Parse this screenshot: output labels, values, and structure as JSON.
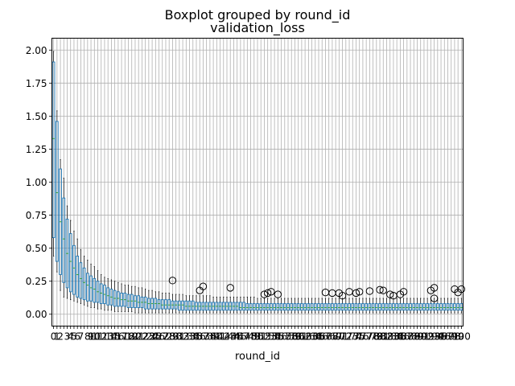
{
  "chart_data": {
    "type": "boxplot",
    "suptitle": "Boxplot grouped by round_id",
    "title": "validation_loss",
    "xlabel": "round_id",
    "ylabel": "",
    "ylim": [
      -0.09,
      2.09
    ],
    "yticks": [
      "0.00",
      "0.25",
      "0.50",
      "0.75",
      "1.00",
      "1.25",
      "1.50",
      "1.75",
      "2.00"
    ],
    "ytick_values": [
      0,
      0.25,
      0.5,
      0.75,
      1.0,
      1.25,
      1.5,
      1.75,
      2.0
    ],
    "grid": true,
    "colors": {
      "box": "#1f77b4",
      "median": "#2ca02c",
      "whisker": "#000000",
      "outlier": "#000000"
    },
    "categories_first": 0,
    "categories_last": 100,
    "x_tick_labels_note_visible_text": "0123456789101112...100",
    "x_ticks": [
      0,
      1,
      2,
      3,
      4,
      5,
      6,
      7,
      8,
      9,
      10,
      11,
      12,
      13,
      14,
      15,
      16,
      17,
      18,
      19,
      20,
      21,
      22,
      23,
      24,
      25,
      26,
      27,
      28,
      29,
      30,
      31,
      32,
      33,
      34,
      35,
      36,
      37,
      38,
      39,
      40,
      41,
      42,
      43,
      44,
      45,
      46,
      47,
      48,
      49,
      50,
      51,
      52,
      53,
      54,
      55,
      56,
      57,
      58,
      59,
      60,
      61,
      62,
      63,
      64,
      65,
      66,
      67,
      68,
      69,
      70,
      71,
      72,
      73,
      74,
      75,
      76,
      77,
      78,
      79,
      80,
      81,
      82,
      83,
      84,
      85,
      86,
      87,
      88,
      89,
      90,
      91,
      92,
      93,
      94,
      95,
      96,
      97,
      98,
      99,
      100
    ],
    "boxes": [
      {
        "x": 0,
        "q1": 0.58,
        "median": 1.33,
        "q3": 1.91,
        "low": 0.44,
        "high": 1.99
      },
      {
        "x": 1,
        "q1": 0.4,
        "median": 0.92,
        "q3": 1.46,
        "low": 0.32,
        "high": 1.54
      },
      {
        "x": 2,
        "q1": 0.3,
        "median": 0.7,
        "q3": 1.1,
        "low": 0.18,
        "high": 1.17
      },
      {
        "x": 3,
        "q1": 0.24,
        "median": 0.57,
        "q3": 0.88,
        "low": 0.13,
        "high": 1.03
      },
      {
        "x": 4,
        "q1": 0.2,
        "median": 0.46,
        "q3": 0.72,
        "low": 0.12,
        "high": 0.82
      },
      {
        "x": 5,
        "q1": 0.17,
        "median": 0.4,
        "q3": 0.61,
        "low": 0.11,
        "high": 0.71
      },
      {
        "x": 6,
        "q1": 0.15,
        "median": 0.35,
        "q3": 0.52,
        "low": 0.1,
        "high": 0.63
      },
      {
        "x": 7,
        "q1": 0.13,
        "median": 0.3,
        "q3": 0.44,
        "low": 0.09,
        "high": 0.57
      },
      {
        "x": 8,
        "q1": 0.12,
        "median": 0.27,
        "q3": 0.39,
        "low": 0.08,
        "high": 0.49
      },
      {
        "x": 9,
        "q1": 0.11,
        "median": 0.24,
        "q3": 0.35,
        "low": 0.07,
        "high": 0.44
      },
      {
        "x": 10,
        "q1": 0.1,
        "median": 0.22,
        "q3": 0.31,
        "low": 0.06,
        "high": 0.41
      },
      {
        "x": 11,
        "q1": 0.1,
        "median": 0.2,
        "q3": 0.29,
        "low": 0.05,
        "high": 0.38
      },
      {
        "x": 12,
        "q1": 0.09,
        "median": 0.19,
        "q3": 0.27,
        "low": 0.05,
        "high": 0.36
      },
      {
        "x": 13,
        "q1": 0.09,
        "median": 0.17,
        "q3": 0.25,
        "low": 0.04,
        "high": 0.33
      },
      {
        "x": 14,
        "q1": 0.08,
        "median": 0.16,
        "q3": 0.23,
        "low": 0.04,
        "high": 0.3
      },
      {
        "x": 15,
        "q1": 0.08,
        "median": 0.15,
        "q3": 0.22,
        "low": 0.03,
        "high": 0.28
      },
      {
        "x": 16,
        "q1": 0.07,
        "median": 0.14,
        "q3": 0.2,
        "low": 0.03,
        "high": 0.27
      },
      {
        "x": 17,
        "q1": 0.07,
        "median": 0.13,
        "q3": 0.19,
        "low": 0.03,
        "high": 0.26
      },
      {
        "x": 18,
        "q1": 0.06,
        "median": 0.12,
        "q3": 0.18,
        "low": 0.02,
        "high": 0.25
      },
      {
        "x": 19,
        "q1": 0.06,
        "median": 0.12,
        "q3": 0.17,
        "low": 0.02,
        "high": 0.24
      },
      {
        "x": 20,
        "q1": 0.06,
        "median": 0.11,
        "q3": 0.16,
        "low": 0.02,
        "high": 0.23
      },
      {
        "x": 21,
        "q1": 0.06,
        "median": 0.11,
        "q3": 0.16,
        "low": 0.02,
        "high": 0.22
      },
      {
        "x": 22,
        "q1": 0.05,
        "median": 0.1,
        "q3": 0.15,
        "low": 0.02,
        "high": 0.22
      },
      {
        "x": 23,
        "q1": 0.05,
        "median": 0.1,
        "q3": 0.15,
        "low": 0.02,
        "high": 0.21
      },
      {
        "x": 24,
        "q1": 0.05,
        "median": 0.1,
        "q3": 0.14,
        "low": 0.01,
        "high": 0.21
      },
      {
        "x": 25,
        "q1": 0.05,
        "median": 0.09,
        "q3": 0.14,
        "low": 0.01,
        "high": 0.2
      },
      {
        "x": 26,
        "q1": 0.05,
        "median": 0.09,
        "q3": 0.13,
        "low": 0.01,
        "high": 0.2
      },
      {
        "x": 27,
        "q1": 0.04,
        "median": 0.09,
        "q3": 0.13,
        "low": 0.01,
        "high": 0.19
      },
      {
        "x": 28,
        "q1": 0.04,
        "median": 0.08,
        "q3": 0.12,
        "low": 0.01,
        "high": 0.18
      },
      {
        "x": 29,
        "q1": 0.04,
        "median": 0.08,
        "q3": 0.12,
        "low": 0.01,
        "high": 0.18
      },
      {
        "x": 30,
        "q1": 0.04,
        "median": 0.08,
        "q3": 0.12,
        "low": 0.01,
        "high": 0.17
      },
      {
        "x": 31,
        "q1": 0.04,
        "median": 0.08,
        "q3": 0.11,
        "low": 0.01,
        "high": 0.17
      },
      {
        "x": 32,
        "q1": 0.04,
        "median": 0.07,
        "q3": 0.11,
        "low": 0.01,
        "high": 0.16
      },
      {
        "x": 33,
        "q1": 0.04,
        "median": 0.07,
        "q3": 0.11,
        "low": 0.01,
        "high": 0.16
      },
      {
        "x": 34,
        "q1": 0.04,
        "median": 0.07,
        "q3": 0.11,
        "low": 0.01,
        "high": 0.16
      },
      {
        "x": 35,
        "q1": 0.04,
        "median": 0.07,
        "q3": 0.1,
        "low": 0.01,
        "high": 0.15
      },
      {
        "x": 36,
        "q1": 0.04,
        "median": 0.07,
        "q3": 0.1,
        "low": 0.01,
        "high": 0.15
      },
      {
        "x": 37,
        "q1": 0.03,
        "median": 0.07,
        "q3": 0.1,
        "low": 0.01,
        "high": 0.15
      },
      {
        "x": 38,
        "q1": 0.03,
        "median": 0.07,
        "q3": 0.1,
        "low": 0.01,
        "high": 0.15
      },
      {
        "x": 39,
        "q1": 0.03,
        "median": 0.06,
        "q3": 0.1,
        "low": 0.01,
        "high": 0.14
      },
      {
        "x": 40,
        "q1": 0.03,
        "median": 0.06,
        "q3": 0.1,
        "low": 0.01,
        "high": 0.14
      },
      {
        "x": 41,
        "q1": 0.03,
        "median": 0.06,
        "q3": 0.1,
        "low": 0.01,
        "high": 0.14
      },
      {
        "x": 42,
        "q1": 0.03,
        "median": 0.06,
        "q3": 0.09,
        "low": 0.01,
        "high": 0.14
      },
      {
        "x": 43,
        "q1": 0.03,
        "median": 0.06,
        "q3": 0.09,
        "low": 0.01,
        "high": 0.14
      },
      {
        "x": 44,
        "q1": 0.03,
        "median": 0.06,
        "q3": 0.09,
        "low": 0.01,
        "high": 0.14
      },
      {
        "x": 45,
        "q1": 0.03,
        "median": 0.06,
        "q3": 0.09,
        "low": 0.01,
        "high": 0.14
      },
      {
        "x": 46,
        "q1": 0.03,
        "median": 0.06,
        "q3": 0.09,
        "low": 0.01,
        "high": 0.14
      },
      {
        "x": 47,
        "q1": 0.03,
        "median": 0.06,
        "q3": 0.09,
        "low": 0.01,
        "high": 0.13
      },
      {
        "x": 48,
        "q1": 0.03,
        "median": 0.06,
        "q3": 0.09,
        "low": 0.01,
        "high": 0.13
      },
      {
        "x": 49,
        "q1": 0.03,
        "median": 0.06,
        "q3": 0.09,
        "low": 0.01,
        "high": 0.13
      },
      {
        "x": 50,
        "q1": 0.03,
        "median": 0.06,
        "q3": 0.09,
        "low": 0.01,
        "high": 0.13
      },
      {
        "x": 51,
        "q1": 0.03,
        "median": 0.06,
        "q3": 0.09,
        "low": 0.01,
        "high": 0.13
      },
      {
        "x": 52,
        "q1": 0.03,
        "median": 0.06,
        "q3": 0.09,
        "low": 0.01,
        "high": 0.13
      },
      {
        "x": 53,
        "q1": 0.03,
        "median": 0.06,
        "q3": 0.09,
        "low": 0.01,
        "high": 0.13
      },
      {
        "x": 54,
        "q1": 0.03,
        "median": 0.06,
        "q3": 0.09,
        "low": 0.01,
        "high": 0.13
      },
      {
        "x": 55,
        "q1": 0.03,
        "median": 0.05,
        "q3": 0.09,
        "low": 0.01,
        "high": 0.13
      },
      {
        "x": 56,
        "q1": 0.03,
        "median": 0.05,
        "q3": 0.09,
        "low": 0.01,
        "high": 0.13
      },
      {
        "x": 57,
        "q1": 0.03,
        "median": 0.05,
        "q3": 0.08,
        "low": 0.01,
        "high": 0.13
      },
      {
        "x": 58,
        "q1": 0.03,
        "median": 0.05,
        "q3": 0.08,
        "low": 0.01,
        "high": 0.13
      },
      {
        "x": 59,
        "q1": 0.03,
        "median": 0.05,
        "q3": 0.08,
        "low": 0.01,
        "high": 0.13
      },
      {
        "x": 60,
        "q1": 0.03,
        "median": 0.05,
        "q3": 0.08,
        "low": 0.01,
        "high": 0.12
      },
      {
        "x": 61,
        "q1": 0.03,
        "median": 0.05,
        "q3": 0.08,
        "low": 0.01,
        "high": 0.12
      },
      {
        "x": 62,
        "q1": 0.03,
        "median": 0.05,
        "q3": 0.08,
        "low": 0.01,
        "high": 0.12
      },
      {
        "x": 63,
        "q1": 0.03,
        "median": 0.05,
        "q3": 0.08,
        "low": 0.01,
        "high": 0.12
      },
      {
        "x": 64,
        "q1": 0.03,
        "median": 0.05,
        "q3": 0.08,
        "low": 0.01,
        "high": 0.12
      },
      {
        "x": 65,
        "q1": 0.03,
        "median": 0.05,
        "q3": 0.08,
        "low": 0.01,
        "high": 0.12
      },
      {
        "x": 66,
        "q1": 0.03,
        "median": 0.05,
        "q3": 0.08,
        "low": 0.01,
        "high": 0.12
      },
      {
        "x": 67,
        "q1": 0.03,
        "median": 0.05,
        "q3": 0.08,
        "low": 0.01,
        "high": 0.12
      },
      {
        "x": 68,
        "q1": 0.03,
        "median": 0.05,
        "q3": 0.08,
        "low": 0.01,
        "high": 0.12
      },
      {
        "x": 69,
        "q1": 0.03,
        "median": 0.05,
        "q3": 0.08,
        "low": 0.01,
        "high": 0.12
      },
      {
        "x": 70,
        "q1": 0.03,
        "median": 0.05,
        "q3": 0.08,
        "low": 0.01,
        "high": 0.12
      },
      {
        "x": 71,
        "q1": 0.03,
        "median": 0.05,
        "q3": 0.08,
        "low": 0.01,
        "high": 0.12
      },
      {
        "x": 72,
        "q1": 0.03,
        "median": 0.05,
        "q3": 0.08,
        "low": 0.01,
        "high": 0.12
      },
      {
        "x": 73,
        "q1": 0.03,
        "median": 0.05,
        "q3": 0.08,
        "low": 0.01,
        "high": 0.12
      },
      {
        "x": 74,
        "q1": 0.03,
        "median": 0.05,
        "q3": 0.08,
        "low": 0.01,
        "high": 0.12
      },
      {
        "x": 75,
        "q1": 0.03,
        "median": 0.05,
        "q3": 0.08,
        "low": 0.01,
        "high": 0.12
      },
      {
        "x": 76,
        "q1": 0.03,
        "median": 0.05,
        "q3": 0.08,
        "low": 0.01,
        "high": 0.12
      },
      {
        "x": 77,
        "q1": 0.03,
        "median": 0.05,
        "q3": 0.08,
        "low": 0.01,
        "high": 0.12
      },
      {
        "x": 78,
        "q1": 0.03,
        "median": 0.05,
        "q3": 0.08,
        "low": 0.01,
        "high": 0.12
      },
      {
        "x": 79,
        "q1": 0.03,
        "median": 0.05,
        "q3": 0.08,
        "low": 0.01,
        "high": 0.12
      },
      {
        "x": 80,
        "q1": 0.03,
        "median": 0.05,
        "q3": 0.08,
        "low": 0.01,
        "high": 0.12
      },
      {
        "x": 81,
        "q1": 0.03,
        "median": 0.05,
        "q3": 0.08,
        "low": 0.01,
        "high": 0.12
      },
      {
        "x": 82,
        "q1": 0.03,
        "median": 0.05,
        "q3": 0.08,
        "low": 0.01,
        "high": 0.12
      },
      {
        "x": 83,
        "q1": 0.03,
        "median": 0.05,
        "q3": 0.08,
        "low": 0.01,
        "high": 0.12
      },
      {
        "x": 84,
        "q1": 0.03,
        "median": 0.05,
        "q3": 0.08,
        "low": 0.01,
        "high": 0.12
      },
      {
        "x": 85,
        "q1": 0.03,
        "median": 0.05,
        "q3": 0.08,
        "low": 0.01,
        "high": 0.12
      },
      {
        "x": 86,
        "q1": 0.03,
        "median": 0.05,
        "q3": 0.08,
        "low": 0.01,
        "high": 0.12
      },
      {
        "x": 87,
        "q1": 0.03,
        "median": 0.05,
        "q3": 0.08,
        "low": 0.01,
        "high": 0.12
      },
      {
        "x": 88,
        "q1": 0.03,
        "median": 0.05,
        "q3": 0.08,
        "low": 0.01,
        "high": 0.12
      },
      {
        "x": 89,
        "q1": 0.03,
        "median": 0.05,
        "q3": 0.08,
        "low": 0.01,
        "high": 0.12
      },
      {
        "x": 90,
        "q1": 0.03,
        "median": 0.05,
        "q3": 0.08,
        "low": 0.01,
        "high": 0.12
      },
      {
        "x": 91,
        "q1": 0.03,
        "median": 0.05,
        "q3": 0.08,
        "low": 0.01,
        "high": 0.12
      },
      {
        "x": 92,
        "q1": 0.03,
        "median": 0.05,
        "q3": 0.08,
        "low": 0.01,
        "high": 0.12
      },
      {
        "x": 93,
        "q1": 0.03,
        "median": 0.05,
        "q3": 0.08,
        "low": 0.01,
        "high": 0.12
      },
      {
        "x": 94,
        "q1": 0.03,
        "median": 0.05,
        "q3": 0.08,
        "low": 0.01,
        "high": 0.12
      },
      {
        "x": 95,
        "q1": 0.03,
        "median": 0.05,
        "q3": 0.08,
        "low": 0.01,
        "high": 0.12
      },
      {
        "x": 96,
        "q1": 0.03,
        "median": 0.05,
        "q3": 0.08,
        "low": 0.01,
        "high": 0.12
      },
      {
        "x": 97,
        "q1": 0.03,
        "median": 0.05,
        "q3": 0.08,
        "low": 0.01,
        "high": 0.12
      },
      {
        "x": 98,
        "q1": 0.03,
        "median": 0.05,
        "q3": 0.08,
        "low": 0.01,
        "high": 0.12
      },
      {
        "x": 99,
        "q1": 0.03,
        "median": 0.05,
        "q3": 0.08,
        "low": 0.01,
        "high": 0.12
      },
      {
        "x": 100,
        "q1": 0.03,
        "median": 0.05,
        "q3": 0.08,
        "low": 0.01,
        "high": 0.12
      }
    ],
    "outliers": [
      {
        "x": 35,
        "y": 0.255
      },
      {
        "x": 43,
        "y": 0.18
      },
      {
        "x": 44,
        "y": 0.21
      },
      {
        "x": 52,
        "y": 0.2
      },
      {
        "x": 62,
        "y": 0.15
      },
      {
        "x": 63,
        "y": 0.16
      },
      {
        "x": 64,
        "y": 0.17
      },
      {
        "x": 66,
        "y": 0.15
      },
      {
        "x": 80,
        "y": 0.165
      },
      {
        "x": 82,
        "y": 0.16
      },
      {
        "x": 84,
        "y": 0.16
      },
      {
        "x": 85,
        "y": 0.14
      },
      {
        "x": 87,
        "y": 0.17
      },
      {
        "x": 89,
        "y": 0.16
      },
      {
        "x": 90,
        "y": 0.17
      },
      {
        "x": 93,
        "y": 0.175
      },
      {
        "x": 96,
        "y": 0.185
      },
      {
        "x": 97,
        "y": 0.18
      },
      {
        "x": 99,
        "y": 0.15
      },
      {
        "x": 100,
        "y": 0.14
      },
      {
        "x": 102,
        "y": 0.15
      },
      {
        "x": 103,
        "y": 0.17
      },
      {
        "x": 111,
        "y": 0.18
      },
      {
        "x": 112,
        "y": 0.2
      },
      {
        "x": 112,
        "y": 0.12
      },
      {
        "x": 118,
        "y": 0.19
      },
      {
        "x": 119,
        "y": 0.165
      },
      {
        "x": 120,
        "y": 0.19
      }
    ]
  }
}
